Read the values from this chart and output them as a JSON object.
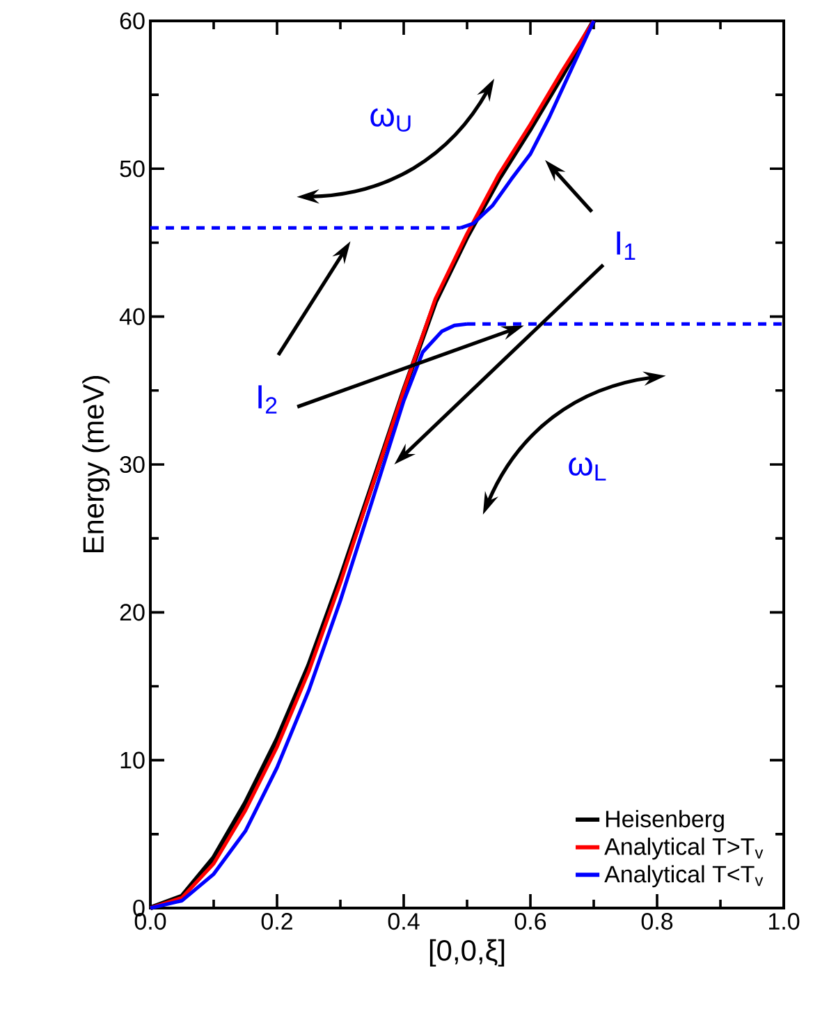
{
  "chart_data": {
    "type": "line",
    "xlabel": "[0,0,ξ]",
    "ylabel": "Energy (meV)",
    "xlim": [
      0,
      1
    ],
    "ylim": [
      0,
      60
    ],
    "xticks": [
      {
        "value": 0,
        "label": "0.0"
      },
      {
        "value": 0.2,
        "label": "0.2"
      },
      {
        "value": 0.4,
        "label": "0.4"
      },
      {
        "value": 0.6,
        "label": "0.6"
      },
      {
        "value": 0.8,
        "label": "0.8"
      },
      {
        "value": 1,
        "label": "1.0"
      }
    ],
    "yticks": [
      0,
      10,
      20,
      30,
      40,
      50,
      60
    ],
    "legend": "bottom right",
    "grid": false,
    "marker": "none",
    "line_style": "solid",
    "series": [
      {
        "name": "Heisenberg",
        "color": "#000000",
        "x": [
          0,
          0.05,
          0.1,
          0.15,
          0.2,
          0.25,
          0.3,
          0.35,
          0.4,
          0.45,
          0.5,
          0.55,
          0.6,
          0.65,
          0.7
        ],
        "values": [
          0,
          0.8,
          3.4,
          7.1,
          11.4,
          16.4,
          22.3,
          28.6,
          35.0,
          41.0,
          45.4,
          49.3,
          52.7,
          56.3,
          60
        ]
      },
      {
        "name": "Analytical T>T$_{v}$",
        "color": "#ff0000",
        "x": [
          0,
          0.05,
          0.1,
          0.15,
          0.2,
          0.25,
          0.3,
          0.35,
          0.4,
          0.45,
          0.5,
          0.55,
          0.6,
          0.65,
          0.7
        ],
        "values": [
          0,
          0.7,
          3.0,
          6.6,
          10.9,
          16.0,
          22.0,
          28.5,
          35.0,
          41.2,
          45.6,
          49.6,
          53.0,
          56.6,
          60
        ]
      },
      {
        "name": "Analytical T<T$_{v}$",
        "color": "#0000ff",
        "x": [
          0,
          0.05,
          0.1,
          0.15,
          0.2,
          0.25,
          0.3,
          0.35,
          0.4,
          0.43,
          0.46,
          0.48,
          0.5,
          0.495,
          0.49,
          0.51,
          0.54,
          0.57,
          0.6,
          0.63,
          0.66,
          0.7
        ],
        "values": [
          0,
          0.5,
          2.3,
          5.2,
          9.5,
          14.7,
          20.8,
          27.5,
          34.3,
          37.6,
          39.0,
          39.4,
          39.5,
          null,
          46,
          46.3,
          47.5,
          49.3,
          51.0,
          53.5,
          56.3,
          60
        ]
      },
      {
        "color": "#0000ff",
        "line_style": "dashed",
        "x": [
          0,
          0.49
        ],
        "values": [
          46,
          46
        ]
      },
      {
        "color": "#0000ff",
        "line_style": "dashed",
        "x": [
          0.5,
          1.0
        ],
        "values": [
          39.5,
          39.5
        ]
      }
    ],
    "annotations": [
      "ω$_{U}$",
      "I$_{1}$",
      "I$_{2}$",
      "ω$_{L}$"
    ]
  }
}
